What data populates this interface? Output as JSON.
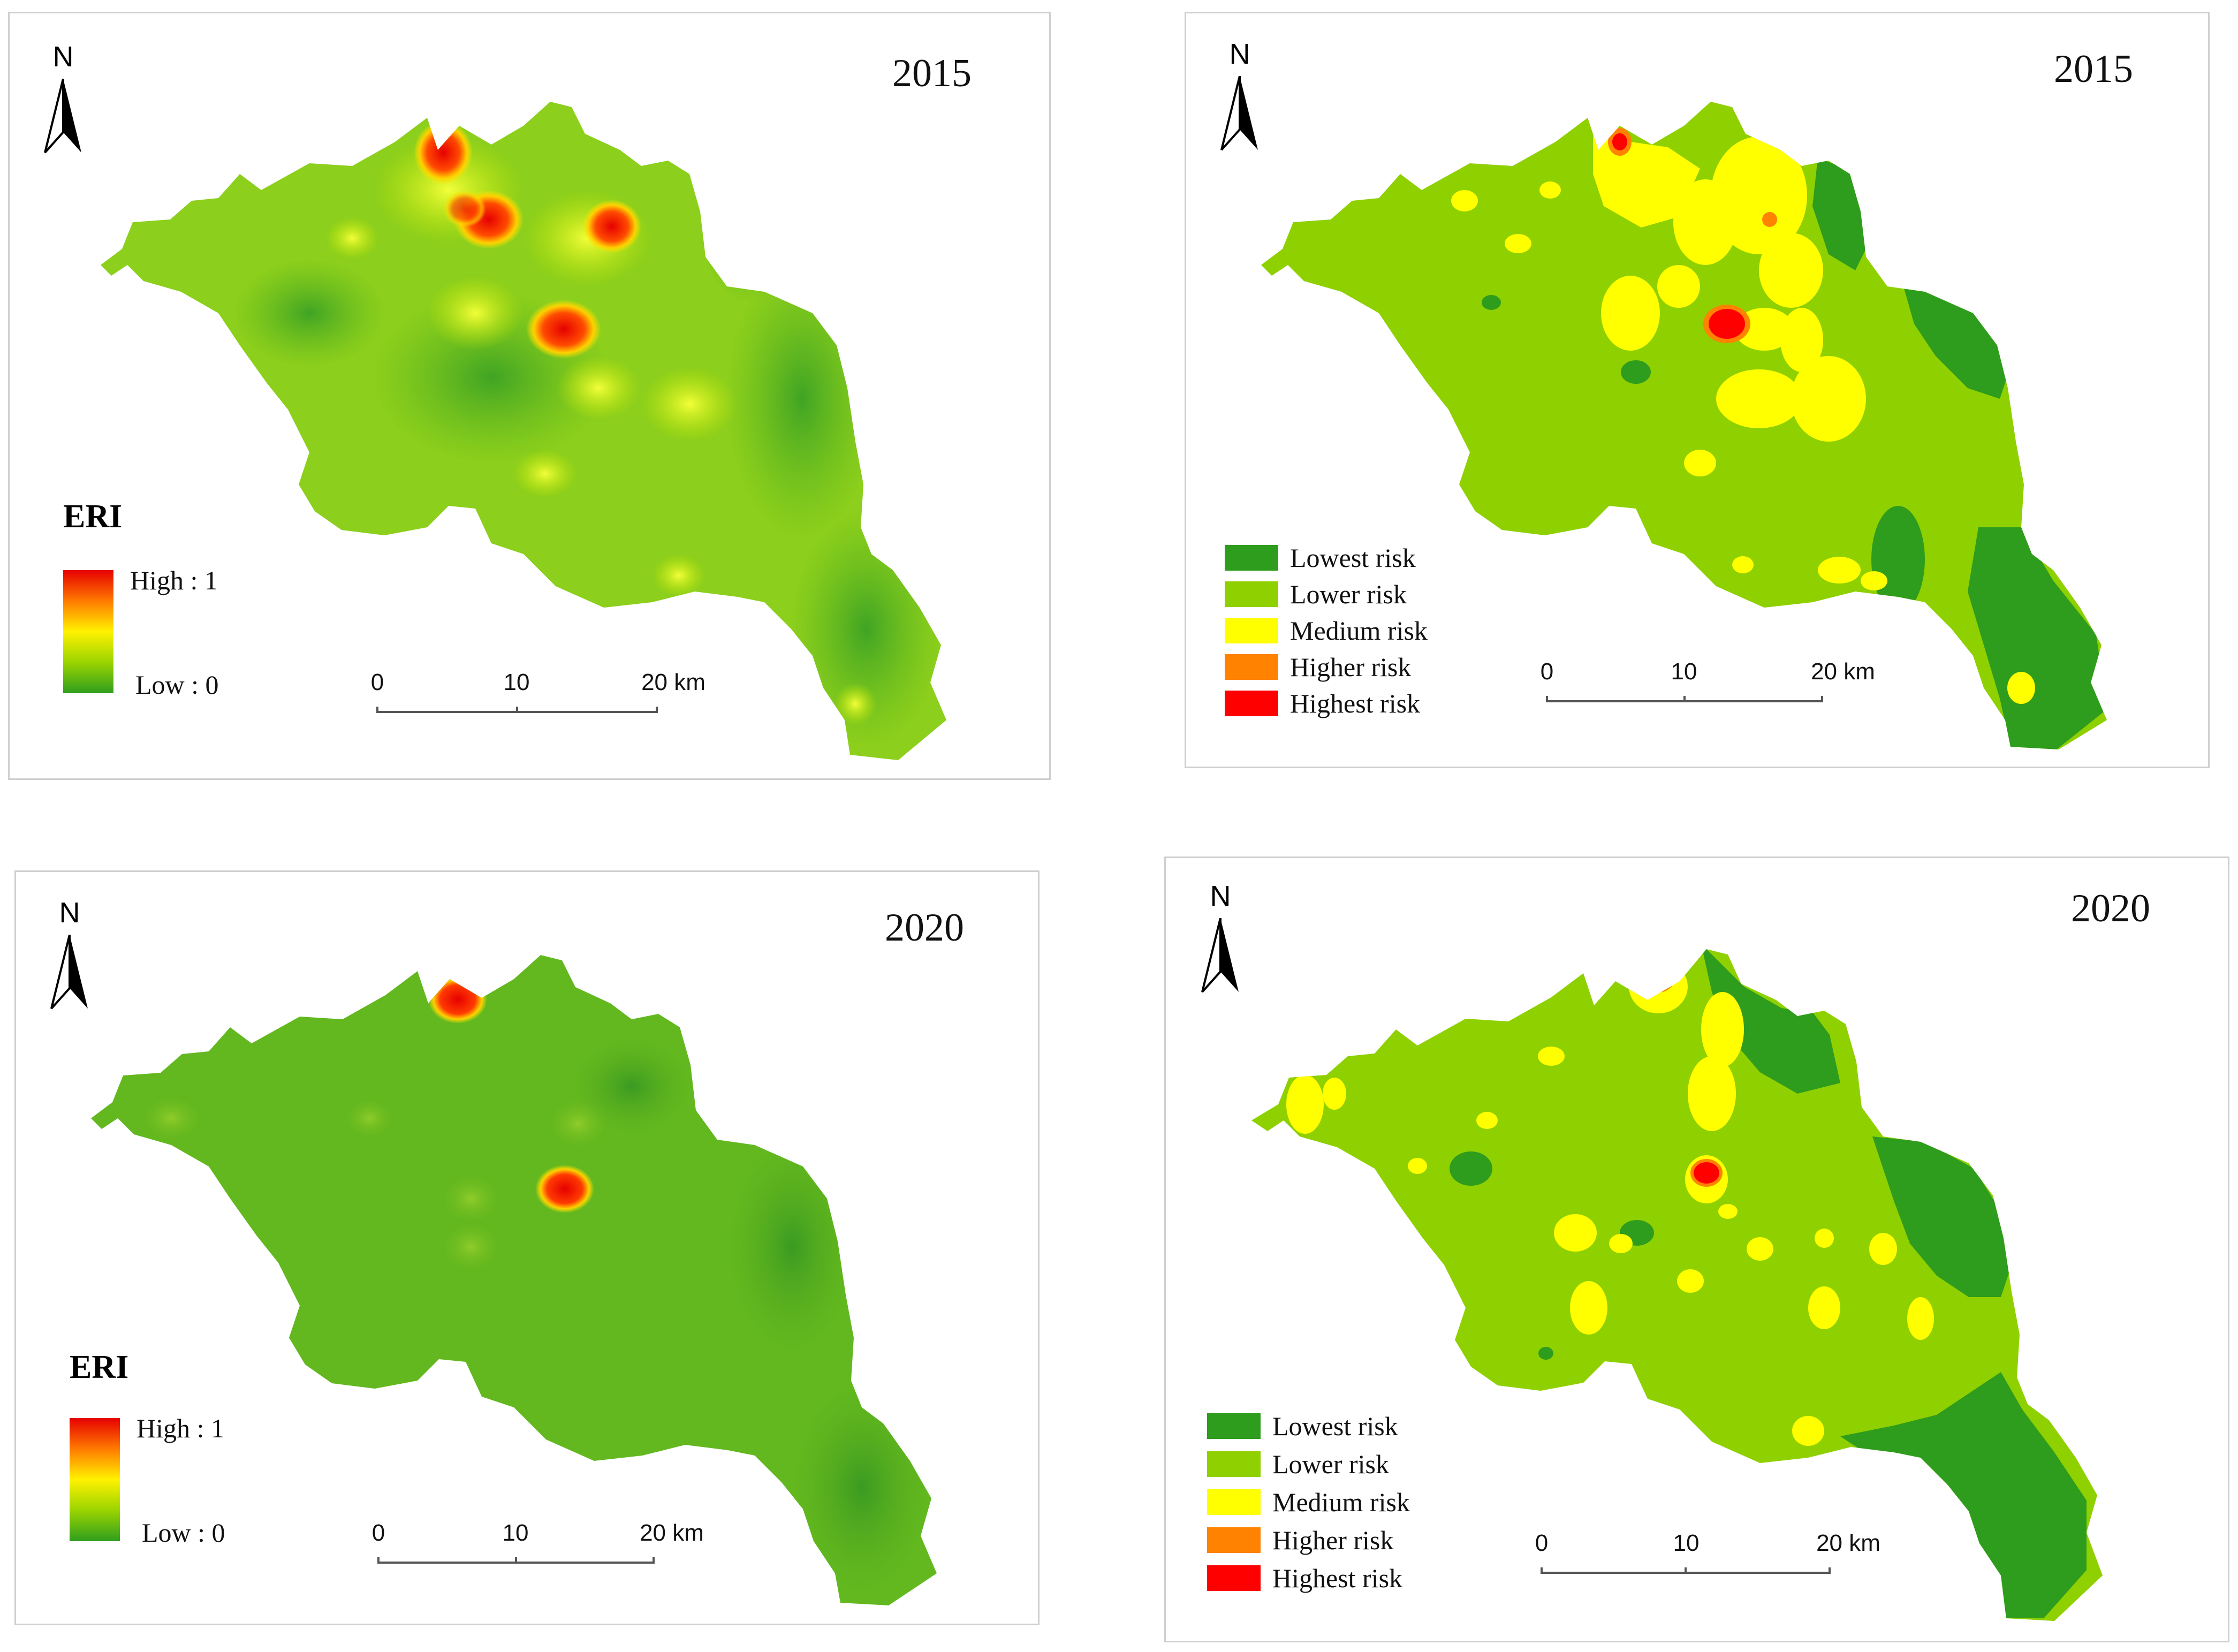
{
  "panels": {
    "p1": {
      "year": "2015",
      "type": "continuous"
    },
    "p2": {
      "year": "2015",
      "type": "classified"
    },
    "p3": {
      "year": "2020",
      "type": "continuous"
    },
    "p4": {
      "year": "2020",
      "type": "classified"
    }
  },
  "north_label": "N",
  "continuous_legend": {
    "title": "ERI",
    "high": "High : 1",
    "low": "Low : 0"
  },
  "classified_legend": [
    {
      "label": "Lowest risk",
      "color": "#2e9c1c"
    },
    {
      "label": "Lower risk",
      "color": "#8fd000"
    },
    {
      "label": "Medium risk",
      "color": "#ffff00"
    },
    {
      "label": "Higher risk",
      "color": "#ff8200"
    },
    {
      "label": "Highest risk",
      "color": "#ff0000"
    }
  ],
  "scalebar": {
    "ticks": [
      "0",
      "10",
      "20 km"
    ]
  },
  "colors": {
    "region_base_2015": "#8fd000",
    "region_base_2020": "#62b81e",
    "lowest": "#2e9c1c",
    "lower": "#8fd000",
    "medium": "#ffff00",
    "higher": "#ff8200",
    "highest": "#ff0000"
  }
}
